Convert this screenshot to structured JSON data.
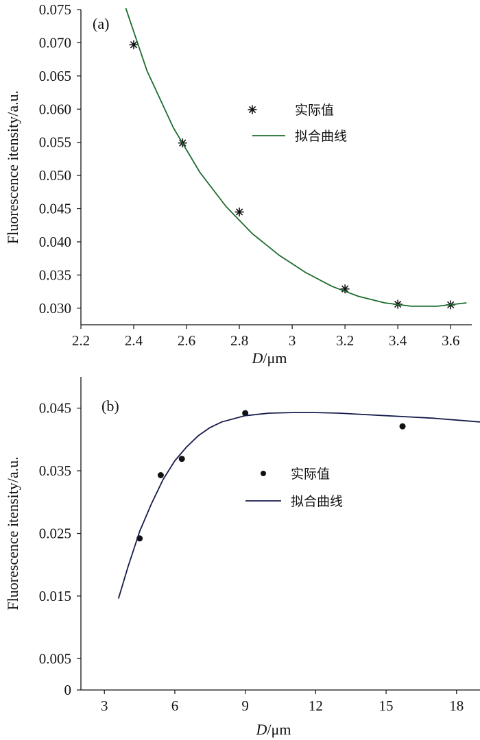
{
  "chart_data": [
    {
      "type": "scatter",
      "panel_label": "(a)",
      "xlabel_italic": "D",
      "xlabel_unit": "/μm",
      "ylabel": "Fluorescence itensity/a.u.",
      "xlim": [
        2.2,
        3.68
      ],
      "ylim": [
        0.0275,
        0.075
      ],
      "xticks": [
        2.2,
        2.4,
        2.6,
        2.8,
        3.0,
        3.2,
        3.4,
        3.6
      ],
      "xtick_labels": [
        "2.2",
        "2.4",
        "2.6",
        "2.8",
        "3",
        "3.2",
        "3.4",
        "3.6"
      ],
      "yticks": [
        0.03,
        0.035,
        0.04,
        0.045,
        0.05,
        0.055,
        0.06,
        0.065,
        0.07,
        0.075
      ],
      "ytick_labels": [
        "0.030",
        "0.035",
        "0.040",
        "0.045",
        "0.050",
        "0.055",
        "0.060",
        "0.065",
        "0.070",
        "0.075"
      ],
      "legend_position": "center-right",
      "grid": false,
      "series": [
        {
          "name": "实际值",
          "kind": "points",
          "marker": "asterisk",
          "color": "#111111",
          "x": [
            2.4,
            2.585,
            2.8,
            3.2,
            3.4,
            3.6
          ],
          "y": [
            0.0697,
            0.0549,
            0.0445,
            0.0329,
            0.0306,
            0.0305
          ]
        },
        {
          "name": "拟合曲线",
          "kind": "line",
          "color": "#1c6b2c",
          "x": [
            2.37,
            2.45,
            2.55,
            2.65,
            2.75,
            2.85,
            2.95,
            3.05,
            3.15,
            3.25,
            3.35,
            3.45,
            3.55,
            3.66
          ],
          "y": [
            0.0752,
            0.0658,
            0.0572,
            0.0505,
            0.0453,
            0.0412,
            0.038,
            0.0354,
            0.0333,
            0.0318,
            0.0308,
            0.0303,
            0.0303,
            0.0308
          ]
        }
      ]
    },
    {
      "type": "scatter",
      "panel_label": "(b)",
      "xlabel_italic": "D",
      "xlabel_unit": "/μm",
      "ylabel": "Fluorescence itensity/a.u.",
      "xlim": [
        2.0,
        19.0
      ],
      "ylim": [
        0.0,
        0.05
      ],
      "xticks": [
        3,
        6,
        9,
        12,
        15,
        18
      ],
      "xtick_labels": [
        "3",
        "6",
        "9",
        "12",
        "15",
        "18"
      ],
      "yticks": [
        0,
        0.005,
        0.015,
        0.025,
        0.035,
        0.045
      ],
      "ytick_labels": [
        "0",
        "0.005",
        "0.015",
        "0.025",
        "0.035",
        "0.045"
      ],
      "legend_position": "center",
      "grid": false,
      "series": [
        {
          "name": "实际值",
          "kind": "points",
          "marker": "dot",
          "color": "#111111",
          "x": [
            4.5,
            5.4,
            6.3,
            9.0,
            15.7
          ],
          "y": [
            0.0242,
            0.0343,
            0.0369,
            0.0442,
            0.0421
          ]
        },
        {
          "name": "拟合曲线",
          "kind": "line",
          "color": "#141a4a",
          "x": [
            3.6,
            4.0,
            4.5,
            5.0,
            5.5,
            6.0,
            6.5,
            7.0,
            7.5,
            8.0,
            9.0,
            10.0,
            11.0,
            12.0,
            13.0,
            14.0,
            15.0,
            16.0,
            17.0,
            18.0,
            19.0
          ],
          "y": [
            0.0146,
            0.0196,
            0.0253,
            0.0297,
            0.0336,
            0.0366,
            0.0388,
            0.0406,
            0.0419,
            0.0428,
            0.0438,
            0.0442,
            0.0443,
            0.0443,
            0.0442,
            0.044,
            0.0438,
            0.0436,
            0.0434,
            0.0431,
            0.0428
          ]
        }
      ]
    }
  ]
}
